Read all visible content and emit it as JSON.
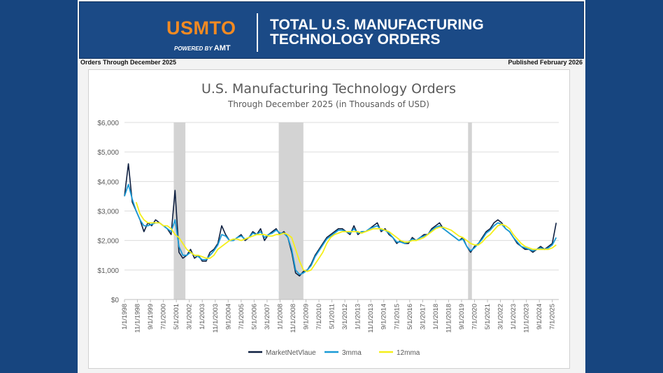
{
  "header": {
    "logo_text": "USMTO",
    "powered_by": "POWERED BY",
    "powered_brand": "AMT",
    "title_line1": "TOTAL U.S. MANUFACTURING",
    "title_line2": "TECHNOLOGY ORDERS",
    "orders_through": "Orders Through December 2025",
    "published": "Published February 2026"
  },
  "colors": {
    "background": "#17457f",
    "banner": "#1b4a86",
    "logo": "#f28a22",
    "market": "#0d1f40",
    "mma3": "#1a9ad6",
    "mma12": "#f5ef1a",
    "recession": "#d3d3d3"
  },
  "chart_data": {
    "type": "line",
    "title": "U.S. Manufacturing Technology Orders",
    "subtitle": "Through December 2025 (in Thousands of USD)",
    "ylim": [
      0,
      6000
    ],
    "yticks": [
      "$0",
      "$1,000",
      "$2,000",
      "$3,000",
      "$4,000",
      "$5,000",
      "$6,000"
    ],
    "ytick_values": [
      0,
      1000,
      2000,
      3000,
      4000,
      5000,
      6000
    ],
    "x_range": [
      "1998-01",
      "2025-12"
    ],
    "xticks": [
      "1/1/1998",
      "11/1/1998",
      "9/1/1999",
      "7/1/2000",
      "5/1/2001",
      "3/1/2002",
      "1/1/2003",
      "11/1/2003",
      "9/1/2004",
      "7/1/2005",
      "5/1/2006",
      "3/1/2007",
      "1/1/2008",
      "11/1/2008",
      "9/1/2009",
      "7/1/2010",
      "5/1/2011",
      "3/1/2012",
      "1/1/2013",
      "11/1/2013",
      "9/1/2014",
      "7/1/2015",
      "5/1/2016",
      "3/1/2017",
      "1/1/2018",
      "11/1/2018",
      "9/1/2019",
      "7/1/2020",
      "5/1/2021",
      "3/1/2022",
      "1/1/2023",
      "11/1/2023",
      "9/1/2024",
      "7/1/2025"
    ],
    "grid": true,
    "legend_position": "bottom",
    "recessions": [
      [
        "2001-03",
        "2001-11"
      ],
      [
        "2007-12",
        "2009-06"
      ],
      [
        "2020-02",
        "2020-04"
      ]
    ],
    "x_start": "1998-01",
    "x_step_months": 3,
    "series": [
      {
        "name": "MarketNetVlaue",
        "color": "#0d1f40",
        "start": "1998-01",
        "values": [
          3500,
          4600,
          3300,
          3000,
          2700,
          2300,
          2600,
          2500,
          2700,
          2600,
          2500,
          2400,
          2200,
          3700,
          1600,
          1400,
          1500,
          1700,
          1400,
          1500,
          1300,
          1300,
          1600,
          1700,
          1900,
          2500,
          2200,
          2000,
          2000,
          2100,
          2200,
          2000,
          2100,
          2300,
          2200,
          2400,
          2000,
          2200,
          2300,
          2400,
          2200,
          2300,
          2100,
          1600,
          900,
          800,
          950,
          1000,
          1200,
          1500,
          1700,
          1900,
          2100,
          2200,
          2300,
          2400,
          2400,
          2300,
          2200,
          2500,
          2200,
          2300,
          2300,
          2400,
          2500,
          2600,
          2300,
          2400,
          2200,
          2100,
          1900,
          2000,
          1900,
          1900,
          2100,
          2000,
          2100,
          2200,
          2200,
          2400,
          2500,
          2600,
          2400,
          2300,
          2200,
          2100,
          2000,
          2100,
          1800,
          1600,
          1800,
          1900,
          2100,
          2300,
          2400,
          2600,
          2700,
          2600,
          2400,
          2300,
          2100,
          1900,
          1800,
          1700,
          1700,
          1600,
          1700,
          1800,
          1700,
          1800,
          1900,
          2600
        ]
      },
      {
        "name": "3mma",
        "color": "#1a9ad6",
        "start": "1998-01",
        "values": [
          3500,
          3900,
          3400,
          3000,
          2700,
          2500,
          2500,
          2550,
          2600,
          2600,
          2500,
          2400,
          2300,
          2700,
          1800,
          1500,
          1500,
          1600,
          1500,
          1450,
          1350,
          1350,
          1500,
          1650,
          1850,
          2200,
          2150,
          2000,
          2000,
          2100,
          2150,
          2050,
          2100,
          2250,
          2200,
          2300,
          2100,
          2200,
          2250,
          2350,
          2250,
          2250,
          2100,
          1700,
          1000,
          850,
          900,
          1000,
          1150,
          1450,
          1650,
          1850,
          2050,
          2150,
          2250,
          2350,
          2350,
          2300,
          2250,
          2400,
          2250,
          2300,
          2300,
          2400,
          2450,
          2500,
          2350,
          2350,
          2250,
          2100,
          1950,
          1950,
          1900,
          1950,
          2050,
          2000,
          2100,
          2150,
          2200,
          2350,
          2450,
          2500,
          2400,
          2300,
          2200,
          2100,
          2000,
          2050,
          1800,
          1650,
          1750,
          1900,
          2050,
          2250,
          2350,
          2500,
          2600,
          2550,
          2400,
          2300,
          2100,
          1950,
          1800,
          1750,
          1700,
          1650,
          1700,
          1750,
          1700,
          1750,
          1850,
          2100
        ]
      },
      {
        "name": "12mma",
        "color": "#f5ef1a",
        "start": "1998-10",
        "values": [
          3300,
          2900,
          2700,
          2600,
          2600,
          2600,
          2600,
          2500,
          2500,
          2400,
          2200,
          2100,
          1900,
          1700,
          1600,
          1500,
          1500,
          1450,
          1400,
          1400,
          1500,
          1700,
          1800,
          1900,
          2000,
          2050,
          2050,
          2000,
          2050,
          2100,
          2150,
          2200,
          2200,
          2200,
          2150,
          2150,
          2200,
          2200,
          2250,
          2200,
          2100,
          1700,
          1300,
          1000,
          950,
          1000,
          1200,
          1400,
          1600,
          1900,
          2100,
          2200,
          2250,
          2300,
          2300,
          2300,
          2300,
          2300,
          2250,
          2300,
          2350,
          2400,
          2400,
          2400,
          2350,
          2300,
          2200,
          2100,
          2000,
          1950,
          1950,
          2000,
          2000,
          2050,
          2100,
          2200,
          2300,
          2400,
          2450,
          2450,
          2400,
          2350,
          2250,
          2150,
          2100,
          2000,
          1900,
          1850,
          1850,
          1950,
          2100,
          2200,
          2350,
          2500,
          2550,
          2500,
          2400,
          2200,
          2050,
          1900,
          1800,
          1750,
          1700,
          1700,
          1700,
          1700,
          1700,
          1750,
          1850
        ]
      }
    ]
  }
}
